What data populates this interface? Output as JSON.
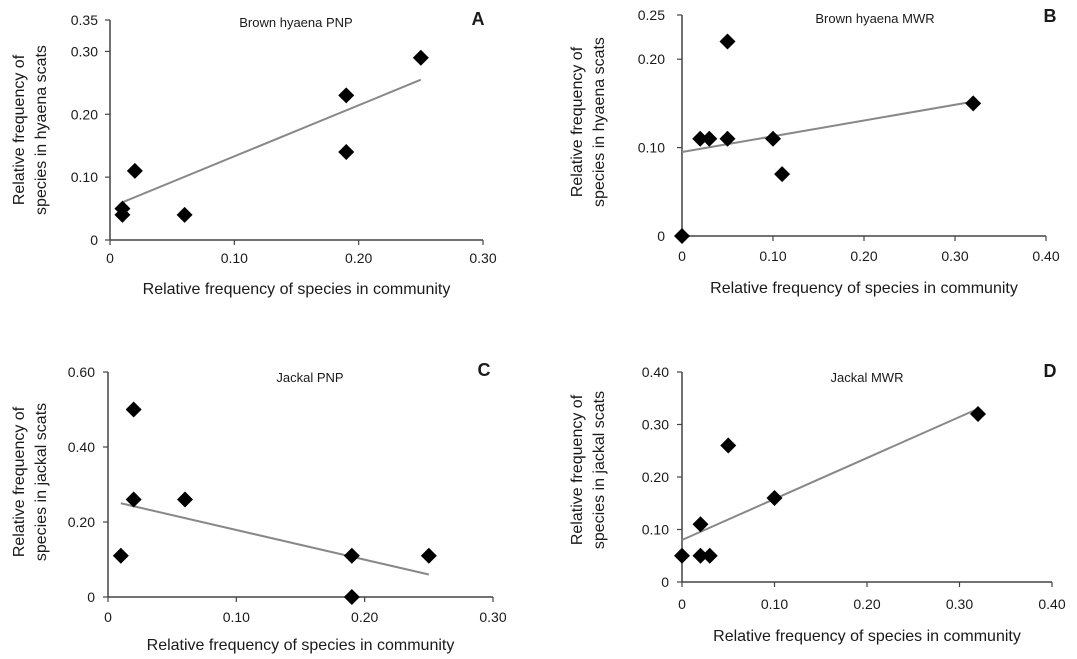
{
  "chart_data": [
    {
      "type": "scatter",
      "letter": "A",
      "title": "Brown hyaena PNP",
      "xlabel": "Relative frequency of species in community",
      "ylabel": [
        "Relative frequency of",
        "species in hyaena scats"
      ],
      "xlim": [
        0,
        0.3
      ],
      "ylim": [
        0,
        0.35
      ],
      "xticks": [
        {
          "v": 0,
          "label": "0"
        },
        {
          "v": 0.1,
          "label": "0.10"
        },
        {
          "v": 0.2,
          "label": "0.20"
        },
        {
          "v": 0.3,
          "label": "0.30"
        }
      ],
      "yticks": [
        {
          "v": 0,
          "label": "0"
        },
        {
          "v": 0.1,
          "label": "0.10"
        },
        {
          "v": 0.2,
          "label": "0.20"
        },
        {
          "v": 0.3,
          "label": "0.30"
        },
        {
          "v": 0.35,
          "label": "0.35"
        }
      ],
      "points": [
        [
          0.01,
          0.05
        ],
        [
          0.01,
          0.04
        ],
        [
          0.02,
          0.11
        ],
        [
          0.06,
          0.04
        ],
        [
          0.19,
          0.23
        ],
        [
          0.19,
          0.14
        ],
        [
          0.25,
          0.29
        ]
      ],
      "trendline": [
        [
          0.01,
          0.06
        ],
        [
          0.25,
          0.255
        ]
      ]
    },
    {
      "type": "scatter",
      "letter": "B",
      "title": "Brown hyaena MWR",
      "xlabel": "Relative frequency of species in community",
      "ylabel": [
        "Relative frequency of",
        "species in hyaena scats"
      ],
      "xlim": [
        0,
        0.4
      ],
      "ylim": [
        0,
        0.25
      ],
      "xticks": [
        {
          "v": 0,
          "label": "0"
        },
        {
          "v": 0.1,
          "label": "0.10"
        },
        {
          "v": 0.2,
          "label": "0.20"
        },
        {
          "v": 0.3,
          "label": "0.30"
        },
        {
          "v": 0.4,
          "label": "0.40"
        }
      ],
      "yticks": [
        {
          "v": 0,
          "label": "0"
        },
        {
          "v": 0.1,
          "label": "0.10"
        },
        {
          "v": 0.2,
          "label": "0.20"
        },
        {
          "v": 0.25,
          "label": "0.25"
        }
      ],
      "points": [
        [
          0,
          0
        ],
        [
          0.02,
          0.11
        ],
        [
          0.03,
          0.11
        ],
        [
          0.05,
          0.11
        ],
        [
          0.05,
          0.22
        ],
        [
          0.1,
          0.11
        ],
        [
          0.11,
          0.07
        ],
        [
          0.32,
          0.15
        ]
      ],
      "trendline": [
        [
          0,
          0.095
        ],
        [
          0.32,
          0.152
        ]
      ]
    },
    {
      "type": "scatter",
      "letter": "C",
      "title": "Jackal PNP",
      "xlabel": "Relative frequency of species in community",
      "ylabel": [
        "Relative frequency of",
        "species in jackal scats"
      ],
      "xlim": [
        0,
        0.3
      ],
      "ylim": [
        0,
        0.6
      ],
      "xticks": [
        {
          "v": 0,
          "label": "0"
        },
        {
          "v": 0.1,
          "label": "0.10"
        },
        {
          "v": 0.2,
          "label": "0.20"
        },
        {
          "v": 0.3,
          "label": "0.30"
        }
      ],
      "yticks": [
        {
          "v": 0,
          "label": "0"
        },
        {
          "v": 0.2,
          "label": "0.20"
        },
        {
          "v": 0.4,
          "label": "0.40"
        },
        {
          "v": 0.6,
          "label": "0.60"
        }
      ],
      "points": [
        [
          0.01,
          0.11
        ],
        [
          0.02,
          0.5
        ],
        [
          0.02,
          0.26
        ],
        [
          0.06,
          0.26
        ],
        [
          0.19,
          0.11
        ],
        [
          0.19,
          0.0
        ],
        [
          0.25,
          0.11
        ]
      ],
      "trendline": [
        [
          0.01,
          0.25
        ],
        [
          0.25,
          0.06
        ]
      ]
    },
    {
      "type": "scatter",
      "letter": "D",
      "title": "Jackal MWR",
      "xlabel": "Relative frequency of species in community",
      "ylabel": [
        "Relative frequency of",
        "species in jackal scats"
      ],
      "xlim": [
        0,
        0.4
      ],
      "ylim": [
        0,
        0.4
      ],
      "xticks": [
        {
          "v": 0,
          "label": "0"
        },
        {
          "v": 0.1,
          "label": "0.10"
        },
        {
          "v": 0.2,
          "label": "0.20"
        },
        {
          "v": 0.3,
          "label": "0.30"
        },
        {
          "v": 0.4,
          "label": "0.40"
        }
      ],
      "yticks": [
        {
          "v": 0,
          "label": "0"
        },
        {
          "v": 0.1,
          "label": "0.10"
        },
        {
          "v": 0.2,
          "label": "0.20"
        },
        {
          "v": 0.3,
          "label": "0.30"
        },
        {
          "v": 0.4,
          "label": "0.40"
        }
      ],
      "points": [
        [
          0,
          0.05
        ],
        [
          0.02,
          0.05
        ],
        [
          0.02,
          0.11
        ],
        [
          0.03,
          0.05
        ],
        [
          0.05,
          0.26
        ],
        [
          0.1,
          0.16
        ],
        [
          0.32,
          0.32
        ]
      ],
      "trendline": [
        [
          0,
          0.08
        ],
        [
          0.32,
          0.33
        ]
      ]
    }
  ]
}
